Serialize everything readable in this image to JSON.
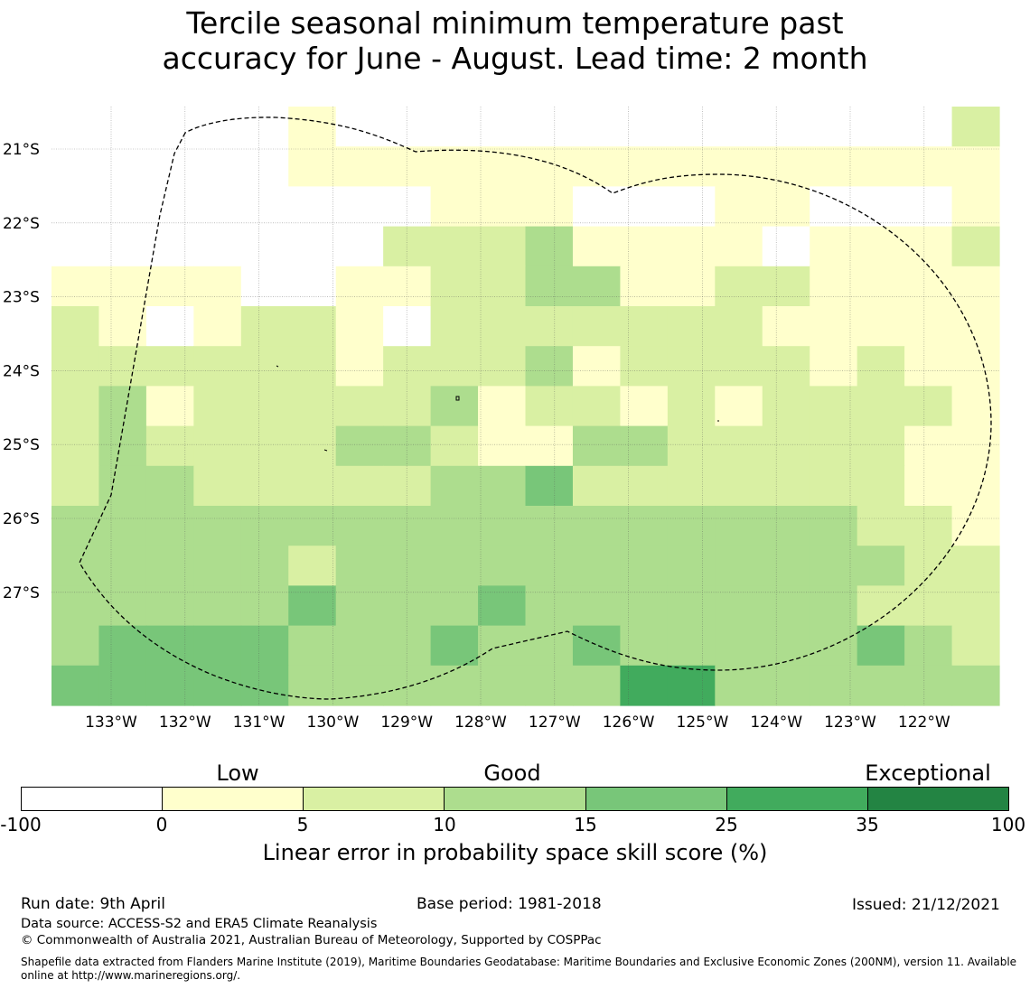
{
  "title_line1": "Tercile seasonal minimum temperature past",
  "title_line2": "accuracy for June - August. Lead time: 2 month",
  "map": {
    "lon_labels": [
      "133°W",
      "132°W",
      "131°W",
      "130°W",
      "129°W",
      "128°W",
      "127°W",
      "126°W",
      "125°W",
      "124°W",
      "123°W",
      "122°W"
    ],
    "lat_labels": [
      "21°S",
      "22°S",
      "23°S",
      "24°S",
      "25°S",
      "26°S",
      "27°S"
    ],
    "grid_classes": [
      "00000188888888888882",
      "00000111111111111111",
      "00000888111000110001",
      "00000882223111181112",
      "11110011223311221111",
      "21812218222222211111",
      "22222212223122221211",
      "23122222312212122221",
      "23222233211332222211",
      "23322222334222222211",
      "33333333333333333221",
      "33333233333333333322",
      "33333433343333333222",
      "34444333433433333432",
      "44444333333355333333"
    ]
  },
  "colorbar": {
    "category_low": "Low",
    "category_good": "Good",
    "category_exceptional": "Exceptional",
    "ticks": [
      "-100",
      "0",
      "5",
      "10",
      "15",
      "25",
      "35",
      "100"
    ],
    "colors": [
      "#ffffff",
      "#ffffcc",
      "#d9f0a3",
      "#addd8e",
      "#78c679",
      "#41ab5d",
      "#238443"
    ],
    "label": "Linear error in probability space skill score (%)"
  },
  "footer": {
    "run_date": "Run date: 9th April",
    "base_period": "Base period: 1981-2018",
    "issued": "Issued: 21/12/2021",
    "data_source": "Data source: ACCESS-S2 and ERA5 Climate Reanalysis",
    "copyright": "© Commonwealth of Australia 2021, Australian Bureau of Meteorology, Supported by COSPPac",
    "shapefile": "Shapefile data extracted from Flanders Marine Institute (2019), Maritime Boundaries Geodatabase: Maritime Boundaries and Exclusive Economic Zones (200NM), version 11. Available online at http://www.marineregions.org/."
  }
}
